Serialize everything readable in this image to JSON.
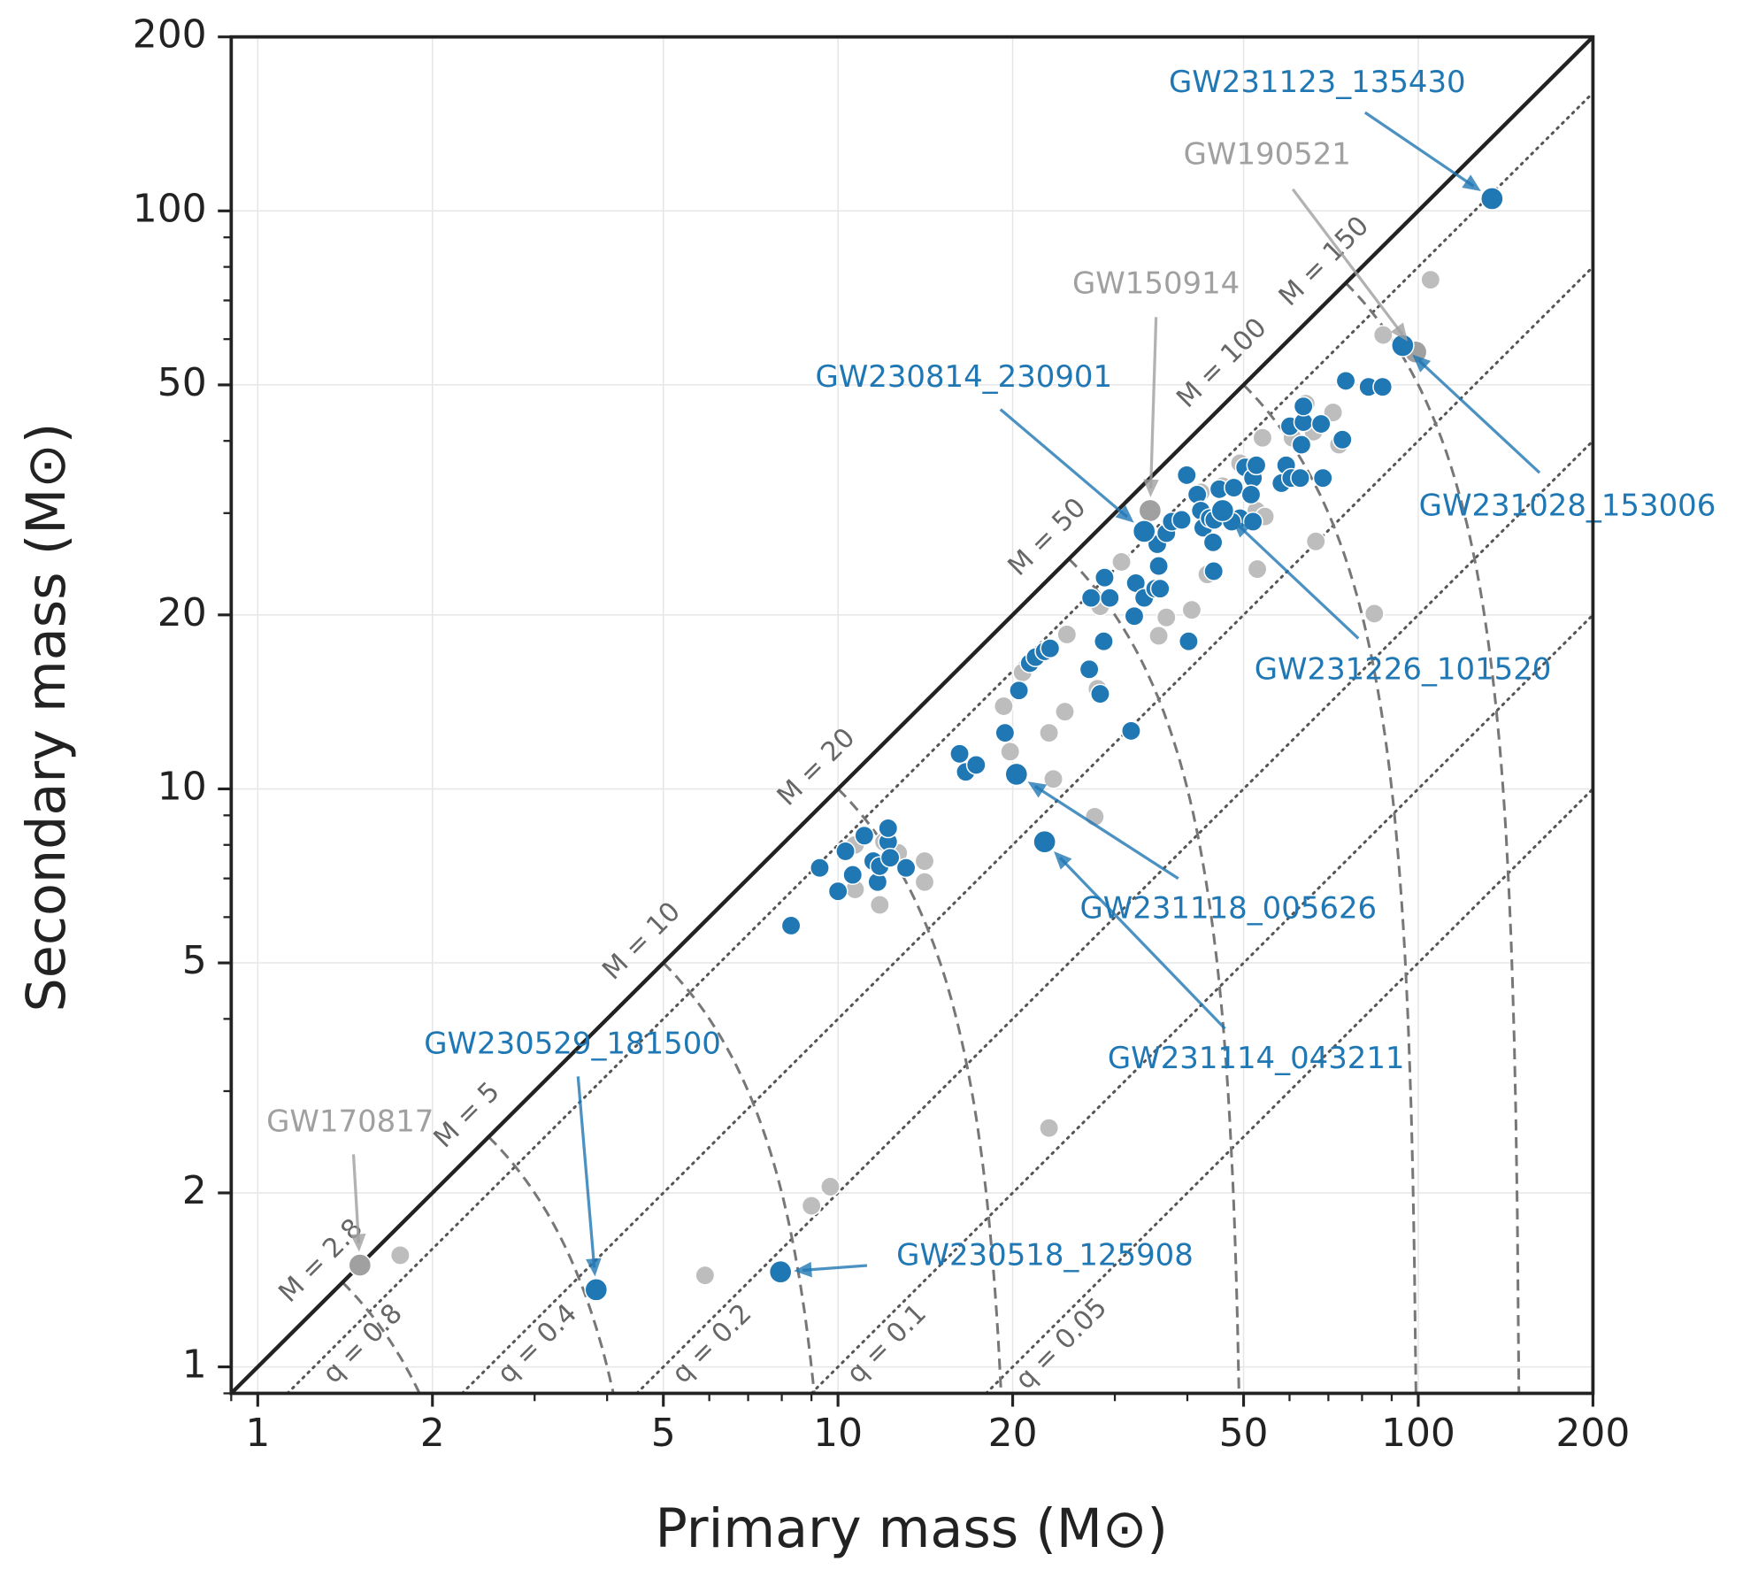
{
  "chart_data": {
    "type": "scatter",
    "xlabel": "Primary mass (M⊙)",
    "ylabel": "Secondary mass (M⊙)",
    "xscale": "log",
    "yscale": "log",
    "xlim": [
      0.9,
      200
    ],
    "ylim": [
      0.9,
      200
    ],
    "xticks": [
      1,
      2,
      5,
      10,
      20,
      50,
      100,
      200
    ],
    "yticks": [
      1,
      2,
      5,
      10,
      20,
      50,
      100,
      200
    ],
    "xminorticks": [
      0.9,
      3,
      4,
      6,
      7,
      8,
      9,
      30,
      40,
      60,
      70,
      80,
      90
    ],
    "yminorticks": [
      0.9,
      3,
      4,
      6,
      7,
      8,
      9,
      30,
      40,
      60,
      70,
      80,
      90
    ],
    "grid": true,
    "series": [
      {
        "color": "#bdbdbd",
        "x": [
          1.76,
          5.9,
          9.0,
          9.7,
          23.1,
          27.7,
          23.5,
          23.1,
          24.6,
          28.0,
          19.3,
          19.8,
          20.8,
          24.8,
          28.3,
          35.7,
          36.8,
          40.7,
          52.8,
          43.3,
          30.8,
          10.7,
          11.8,
          12.7,
          14.1,
          14.1,
          12.0,
          10.7,
          64.0,
          71.3,
          73.0,
          66.0,
          60.7,
          53.9,
          49.3,
          46.0,
          42.2,
          52.6,
          54.4,
          66.6,
          84.0,
          87.0,
          105
        ],
        "values": [
          1.56,
          1.44,
          1.9,
          2.05,
          2.59,
          8.95,
          10.4,
          12.5,
          13.6,
          14.9,
          13.9,
          11.6,
          15.9,
          18.5,
          20.7,
          18.4,
          19.8,
          20.4,
          24.0,
          23.5,
          24.7,
          6.7,
          6.3,
          7.75,
          7.5,
          6.9,
          8.1,
          8.0,
          46.4,
          44.8,
          39.4,
          41.5,
          40.5,
          40.5,
          36.6,
          33.4,
          32.6,
          30.3,
          29.6,
          26.8,
          20.1,
          61.0,
          76.0
        ]
      },
      {
        "color": "#1f77b4",
        "x": [
          8.3,
          9.3,
          10.0,
          10.3,
          10.6,
          11.1,
          11.5,
          11.7,
          11.8,
          12.2,
          12.2,
          12.3,
          13.1,
          16.2,
          16.6,
          17.3,
          19.4,
          20.5,
          21.4,
          21.9,
          22.7,
          23.2,
          27.1,
          28.3,
          28.7,
          27.3,
          28.8,
          29.4,
          32.0,
          32.4,
          32.6,
          33.7,
          35.2,
          35.7,
          35.5,
          36.8,
          37.6,
          35.9,
          39.1,
          40.2,
          39.9,
          41.6,
          42.2,
          42.6,
          43.7,
          44.3,
          44.5,
          45.4,
          44.4,
          48.1,
          49.3,
          47.7,
          50.3,
          51.9,
          51.5,
          52.6,
          51.9,
          58.1,
          59.2,
          60.4,
          62.6,
          60.1,
          63.4,
          63.4,
          62.9,
          68.0,
          68.5,
          74.0,
          75.0,
          82.1,
          86.8
        ],
        "values": [
          5.8,
          7.3,
          6.65,
          7.8,
          7.1,
          8.3,
          7.5,
          6.9,
          7.35,
          8.1,
          8.55,
          7.6,
          7.3,
          11.5,
          10.7,
          11.0,
          12.5,
          14.8,
          16.5,
          16.9,
          17.3,
          17.5,
          16.1,
          14.6,
          18.0,
          21.4,
          23.2,
          21.4,
          12.6,
          19.9,
          22.7,
          21.4,
          22.2,
          24.3,
          26.5,
          27.7,
          29.0,
          22.2,
          29.2,
          18.0,
          34.9,
          32.3,
          30.3,
          28.3,
          29.4,
          26.7,
          29.2,
          33.0,
          23.8,
          33.2,
          29.4,
          29.0,
          36.0,
          34.5,
          32.3,
          36.3,
          29.0,
          33.8,
          36.3,
          34.5,
          34.5,
          42.4,
          43.1,
          45.9,
          39.4,
          42.8,
          34.5,
          40.2,
          50.8,
          49.6,
          49.6
        ]
      }
    ],
    "q_lines": [
      {
        "value": 0.8,
        "label": "q = 0.8"
      },
      {
        "value": 0.4,
        "label": "q = 0.4"
      },
      {
        "value": 0.2,
        "label": "q = 0.2"
      },
      {
        "value": 0.1,
        "label": "q = 0.1"
      },
      {
        "value": 0.05,
        "label": "q = 0.05"
      }
    ],
    "total_mass_curves": [
      {
        "value": 2.8,
        "label": "M = 2.8"
      },
      {
        "value": 5,
        "label": "M = 5"
      },
      {
        "value": 10,
        "label": "M = 10"
      },
      {
        "value": 20,
        "label": "M = 20"
      },
      {
        "value": 50,
        "label": "M = 50"
      },
      {
        "value": 100,
        "label": "M = 100"
      },
      {
        "value": 150,
        "label": "M = 150"
      }
    ],
    "annotations": [
      {
        "text": "GW231123_135430",
        "x": 134,
        "y": 105,
        "color": "#1f77b4"
      },
      {
        "text": "GW190521",
        "x": 99,
        "y": 57,
        "color": "#a0a0a0"
      },
      {
        "text": "GW150914",
        "x": 34.5,
        "y": 30.3,
        "color": "#a0a0a0"
      },
      {
        "text": "GW230814_230901",
        "x": 33.7,
        "y": 27.9,
        "color": "#1f77b4"
      },
      {
        "text": "GW231028_153006",
        "x": 94,
        "y": 58.5,
        "color": "#1f77b4"
      },
      {
        "text": "GW231226_101520",
        "x": 46,
        "y": 30.3,
        "color": "#1f77b4"
      },
      {
        "text": "GW231118_005626",
        "x": 20.3,
        "y": 10.6,
        "color": "#1f77b4"
      },
      {
        "text": "GW231114_043211",
        "x": 22.7,
        "y": 8.1,
        "color": "#1f77b4"
      },
      {
        "text": "GW230529_181500",
        "x": 3.83,
        "y": 1.36,
        "color": "#1f77b4"
      },
      {
        "text": "GW170817",
        "x": 1.5,
        "y": 1.5,
        "color": "#a0a0a0"
      },
      {
        "text": "GW230518_125908",
        "x": 7.96,
        "y": 1.46,
        "color": "#1f77b4"
      }
    ]
  }
}
